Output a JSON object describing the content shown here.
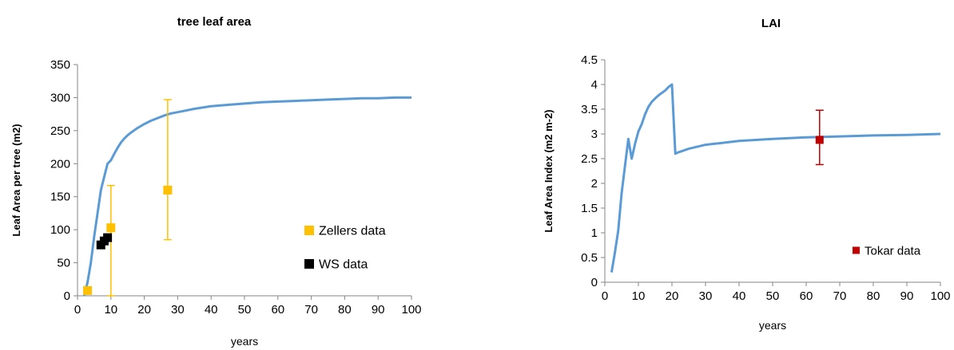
{
  "chart_data": [
    {
      "type": "line",
      "title": "tree leaf area",
      "xlabel": "years",
      "ylabel": "Leaf Area per tree (m2)",
      "xlim": [
        0,
        100
      ],
      "ylim": [
        0,
        350
      ],
      "xticks": [
        "0",
        "10",
        "20",
        "30",
        "40",
        "50",
        "60",
        "70",
        "80",
        "90",
        "100"
      ],
      "yticks": [
        "0",
        "50",
        "100",
        "150",
        "200",
        "250",
        "300",
        "350"
      ],
      "grid": false,
      "legend_position": "right",
      "series": [
        {
          "kind": "line",
          "color": "#5b9bd5",
          "x": [
            2,
            3,
            4,
            5,
            6,
            7,
            8,
            9,
            10,
            11,
            12,
            13,
            14,
            15,
            16,
            18,
            20,
            22,
            24,
            26,
            28,
            30,
            35,
            40,
            45,
            50,
            55,
            60,
            65,
            70,
            75,
            80,
            85,
            90,
            95,
            100
          ],
          "y": [
            0,
            20,
            50,
            90,
            125,
            160,
            180,
            200,
            205,
            215,
            224,
            232,
            238,
            243,
            247,
            254,
            260,
            265,
            269,
            273,
            276,
            278,
            283,
            287,
            289,
            291,
            293,
            294,
            295,
            296,
            297,
            298,
            299,
            299,
            300,
            300
          ]
        },
        {
          "kind": "points",
          "name": "Zellers data",
          "color": "#ffc000",
          "x": [
            3,
            10,
            27
          ],
          "y": [
            8,
            103,
            160
          ],
          "error_low": [
            null,
            0,
            85
          ],
          "error_high": [
            null,
            167,
            297
          ]
        },
        {
          "kind": "points",
          "name": "WS data",
          "color": "#000000",
          "x": [
            7,
            8,
            9
          ],
          "y": [
            77,
            83,
            88
          ]
        }
      ]
    },
    {
      "type": "line",
      "title": "LAI",
      "xlabel": "years",
      "ylabel": "Leaf Area Index (m2 m-2)",
      "xlim": [
        0,
        100
      ],
      "ylim": [
        0,
        4.5
      ],
      "xticks": [
        "0",
        "10",
        "20",
        "30",
        "40",
        "50",
        "60",
        "70",
        "80",
        "90",
        "100"
      ],
      "yticks": [
        "0",
        "0.5",
        "1",
        "1.5",
        "2",
        "2.5",
        "3",
        "3.5",
        "4",
        "4.5"
      ],
      "grid": false,
      "legend_position": "bottom-right",
      "series": [
        {
          "kind": "line",
          "color": "#5b9bd5",
          "x": [
            2,
            3,
            4,
            5,
            6,
            7,
            8,
            9,
            10,
            11,
            12,
            13,
            14,
            15,
            16,
            17,
            18,
            19,
            20,
            21,
            22,
            25,
            30,
            35,
            40,
            50,
            60,
            70,
            80,
            90,
            100
          ],
          "y": [
            0.2,
            0.6,
            1.05,
            1.8,
            2.35,
            2.9,
            2.5,
            2.8,
            3.05,
            3.2,
            3.4,
            3.55,
            3.65,
            3.72,
            3.78,
            3.83,
            3.88,
            3.95,
            4.0,
            2.6,
            2.63,
            2.7,
            2.78,
            2.82,
            2.86,
            2.9,
            2.93,
            2.95,
            2.97,
            2.98,
            3.0
          ]
        },
        {
          "kind": "points",
          "name": "Tokar data",
          "color": "#c00000",
          "x": [
            64
          ],
          "y": [
            2.88
          ],
          "error_low": [
            2.38
          ],
          "error_high": [
            3.48
          ]
        }
      ]
    }
  ]
}
